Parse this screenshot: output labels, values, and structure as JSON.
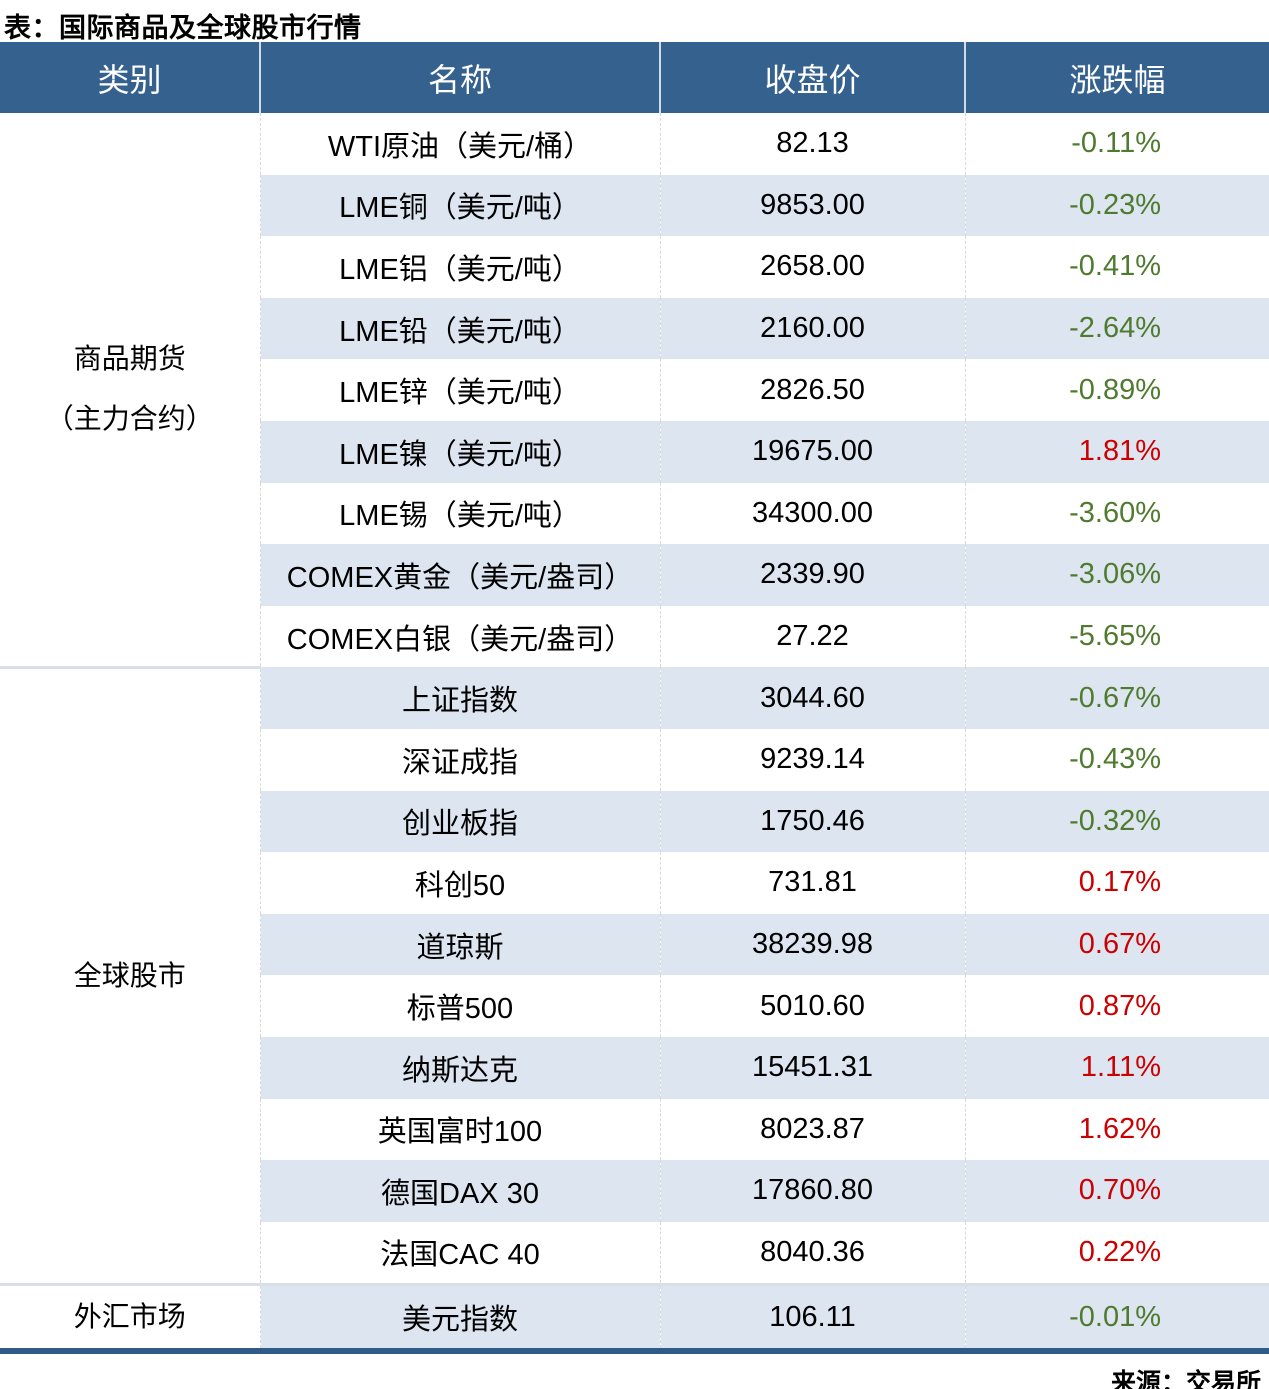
{
  "title": "表：国际商品及全球股市行情",
  "source": "来源：交易所",
  "colors": {
    "header_bg": "#35618F",
    "band_bg": "#DCE5F0",
    "up_red": "#CC0000",
    "down_green": "#4F7B2F",
    "bottom_border": "#2F5B88",
    "separator": "#D9DFE9"
  },
  "chart_data": {
    "type": "table",
    "title": "表：国际商品及全球股市行情",
    "columns": [
      "类别",
      "名称",
      "收盘价",
      "涨跌幅"
    ],
    "sections": [
      {
        "category_lines": [
          "商品期货",
          "（主力合约）"
        ],
        "rows": [
          {
            "name": "WTI原油（美元/桶）",
            "close": "82.13",
            "change": "-0.11%",
            "dir": "down"
          },
          {
            "name": "LME铜（美元/吨）",
            "close": "9853.00",
            "change": "-0.23%",
            "dir": "down"
          },
          {
            "name": "LME铝（美元/吨）",
            "close": "2658.00",
            "change": "-0.41%",
            "dir": "down"
          },
          {
            "name": "LME铅（美元/吨）",
            "close": "2160.00",
            "change": "-2.64%",
            "dir": "down"
          },
          {
            "name": "LME锌（美元/吨）",
            "close": "2826.50",
            "change": "-0.89%",
            "dir": "down"
          },
          {
            "name": "LME镍（美元/吨）",
            "close": "19675.00",
            "change": "1.81%",
            "dir": "up"
          },
          {
            "name": "LME锡（美元/吨）",
            "close": "34300.00",
            "change": "-3.60%",
            "dir": "down"
          },
          {
            "name": "COMEX黄金（美元/盎司）",
            "close": "2339.90",
            "change": "-3.06%",
            "dir": "down"
          },
          {
            "name": "COMEX白银（美元/盎司）",
            "close": "27.22",
            "change": "-5.65%",
            "dir": "down"
          }
        ]
      },
      {
        "category_lines": [
          "全球股市"
        ],
        "rows": [
          {
            "name": "上证指数",
            "close": "3044.60",
            "change": "-0.67%",
            "dir": "down"
          },
          {
            "name": "深证成指",
            "close": "9239.14",
            "change": "-0.43%",
            "dir": "down"
          },
          {
            "name": "创业板指",
            "close": "1750.46",
            "change": "-0.32%",
            "dir": "down"
          },
          {
            "name": "科创50",
            "close": "731.81",
            "change": "0.17%",
            "dir": "up"
          },
          {
            "name": "道琼斯",
            "close": "38239.98",
            "change": "0.67%",
            "dir": "up"
          },
          {
            "name": "标普500",
            "close": "5010.60",
            "change": "0.87%",
            "dir": "up"
          },
          {
            "name": "纳斯达克",
            "close": "15451.31",
            "change": "1.11%",
            "dir": "up"
          },
          {
            "name": "英国富时100",
            "close": "8023.87",
            "change": "1.62%",
            "dir": "up"
          },
          {
            "name": "德国DAX 30",
            "close": "17860.80",
            "change": "0.70%",
            "dir": "up"
          },
          {
            "name": "法国CAC 40",
            "close": "8040.36",
            "change": "0.22%",
            "dir": "up"
          }
        ]
      },
      {
        "category_lines": [
          "外汇市场"
        ],
        "rows": [
          {
            "name": "美元指数",
            "close": "106.11",
            "change": "-0.01%",
            "dir": "down"
          }
        ]
      }
    ]
  }
}
